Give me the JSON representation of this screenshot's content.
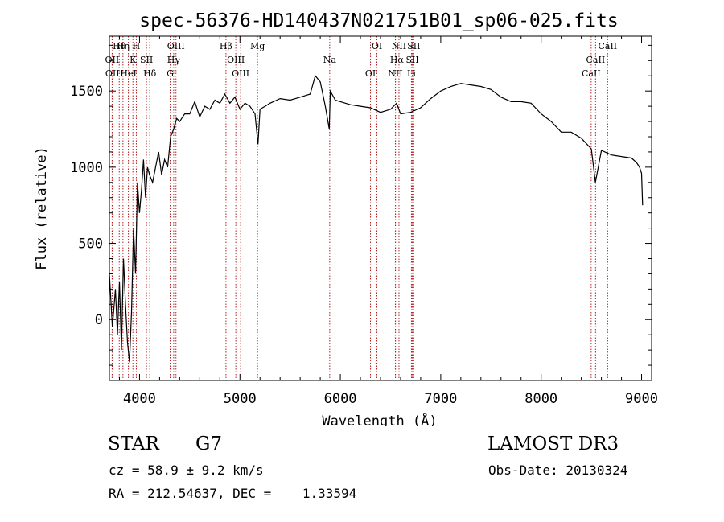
{
  "chart_data": {
    "type": "line",
    "title": "spec-56376-HD140437N021751B01_sp06-025.fits",
    "xlabel": "Wavelength (Å)",
    "ylabel": "Flux (relative)",
    "xlim": [
      3700,
      9100
    ],
    "ylim": [
      -400,
      1860
    ],
    "xticks": [
      4000,
      5000,
      6000,
      7000,
      8000,
      9000
    ],
    "yticks": [
      0,
      500,
      1000,
      1500
    ],
    "series": [
      {
        "name": "spectrum",
        "x": [
          3700,
          3730,
          3760,
          3780,
          3800,
          3820,
          3840,
          3860,
          3880,
          3900,
          3920,
          3940,
          3960,
          3980,
          4000,
          4020,
          4040,
          4060,
          4080,
          4100,
          4130,
          4160,
          4190,
          4220,
          4250,
          4280,
          4310,
          4340,
          4370,
          4400,
          4450,
          4500,
          4550,
          4600,
          4650,
          4700,
          4750,
          4800,
          4850,
          4900,
          4950,
          5000,
          5050,
          5100,
          5150,
          5180,
          5200,
          5250,
          5300,
          5400,
          5500,
          5600,
          5700,
          5750,
          5800,
          5850,
          5890,
          5900,
          5950,
          6000,
          6100,
          6200,
          6300,
          6400,
          6500,
          6560,
          6600,
          6700,
          6800,
          6900,
          7000,
          7100,
          7200,
          7300,
          7400,
          7500,
          7600,
          7700,
          7800,
          7900,
          8000,
          8100,
          8200,
          8300,
          8400,
          8500,
          8540,
          8600,
          8700,
          8800,
          8900,
          8950,
          8980,
          9000,
          9010
        ],
        "values": [
          300,
          -50,
          200,
          -100,
          250,
          -200,
          400,
          100,
          -150,
          -280,
          50,
          600,
          300,
          900,
          700,
          850,
          1050,
          800,
          1000,
          950,
          900,
          1000,
          1100,
          950,
          1050,
          1000,
          1200,
          1250,
          1320,
          1300,
          1350,
          1350,
          1430,
          1330,
          1400,
          1380,
          1440,
          1420,
          1480,
          1420,
          1460,
          1380,
          1420,
          1400,
          1350,
          1150,
          1380,
          1400,
          1420,
          1450,
          1440,
          1460,
          1480,
          1600,
          1560,
          1400,
          1250,
          1500,
          1440,
          1430,
          1410,
          1400,
          1390,
          1360,
          1380,
          1420,
          1350,
          1360,
          1390,
          1450,
          1500,
          1530,
          1550,
          1540,
          1530,
          1510,
          1460,
          1430,
          1430,
          1420,
          1350,
          1300,
          1230,
          1230,
          1190,
          1120,
          900,
          1110,
          1080,
          1070,
          1060,
          1030,
          1000,
          960,
          750
        ]
      }
    ],
    "lines": [
      {
        "label": "Hθ",
        "x": 3798
      },
      {
        "label": "OII",
        "x": 3727
      },
      {
        "label": "OII",
        "x": 3730
      },
      {
        "label": "Hη",
        "x": 3835
      },
      {
        "label": "K",
        "x": 3934
      },
      {
        "label": "HeI",
        "x": 3889
      },
      {
        "label": "H",
        "x": 3968
      },
      {
        "label": "SII",
        "x": 4069
      },
      {
        "label": "Hδ",
        "x": 4102
      },
      {
        "label": "OIII",
        "x": 4363
      },
      {
        "label": "Hγ",
        "x": 4340
      },
      {
        "label": "G",
        "x": 4305
      },
      {
        "label": "Hβ",
        "x": 4861
      },
      {
        "label": "OIII",
        "x": 4959
      },
      {
        "label": "OIII",
        "x": 5007
      },
      {
        "label": "Mg",
        "x": 5175
      },
      {
        "label": "Na",
        "x": 5894
      },
      {
        "label": "OI",
        "x": 6300
      },
      {
        "label": "OI",
        "x": 6364
      },
      {
        "label": "Hα",
        "x": 6563
      },
      {
        "label": "NII",
        "x": 6548
      },
      {
        "label": "NII",
        "x": 6584
      },
      {
        "label": "SII",
        "x": 6717
      },
      {
        "label": "Li",
        "x": 6708
      },
      {
        "label": "SII",
        "x": 6731
      },
      {
        "label": "CaII",
        "x": 8542
      },
      {
        "label": "CaII",
        "x": 8498
      },
      {
        "label": "CaII",
        "x": 8662
      }
    ]
  },
  "info": {
    "object_class": "STAR",
    "subclass": "G7",
    "cz": "cz = 58.9 ± 9.2 km/s",
    "coords": "RA = 212.54637, DEC =    1.33594",
    "survey": "LAMOST DR3",
    "obs_date": "Obs-Date: 20130324"
  },
  "colors": {
    "spectrum": "#000000",
    "marker_lines": "#b22222"
  }
}
